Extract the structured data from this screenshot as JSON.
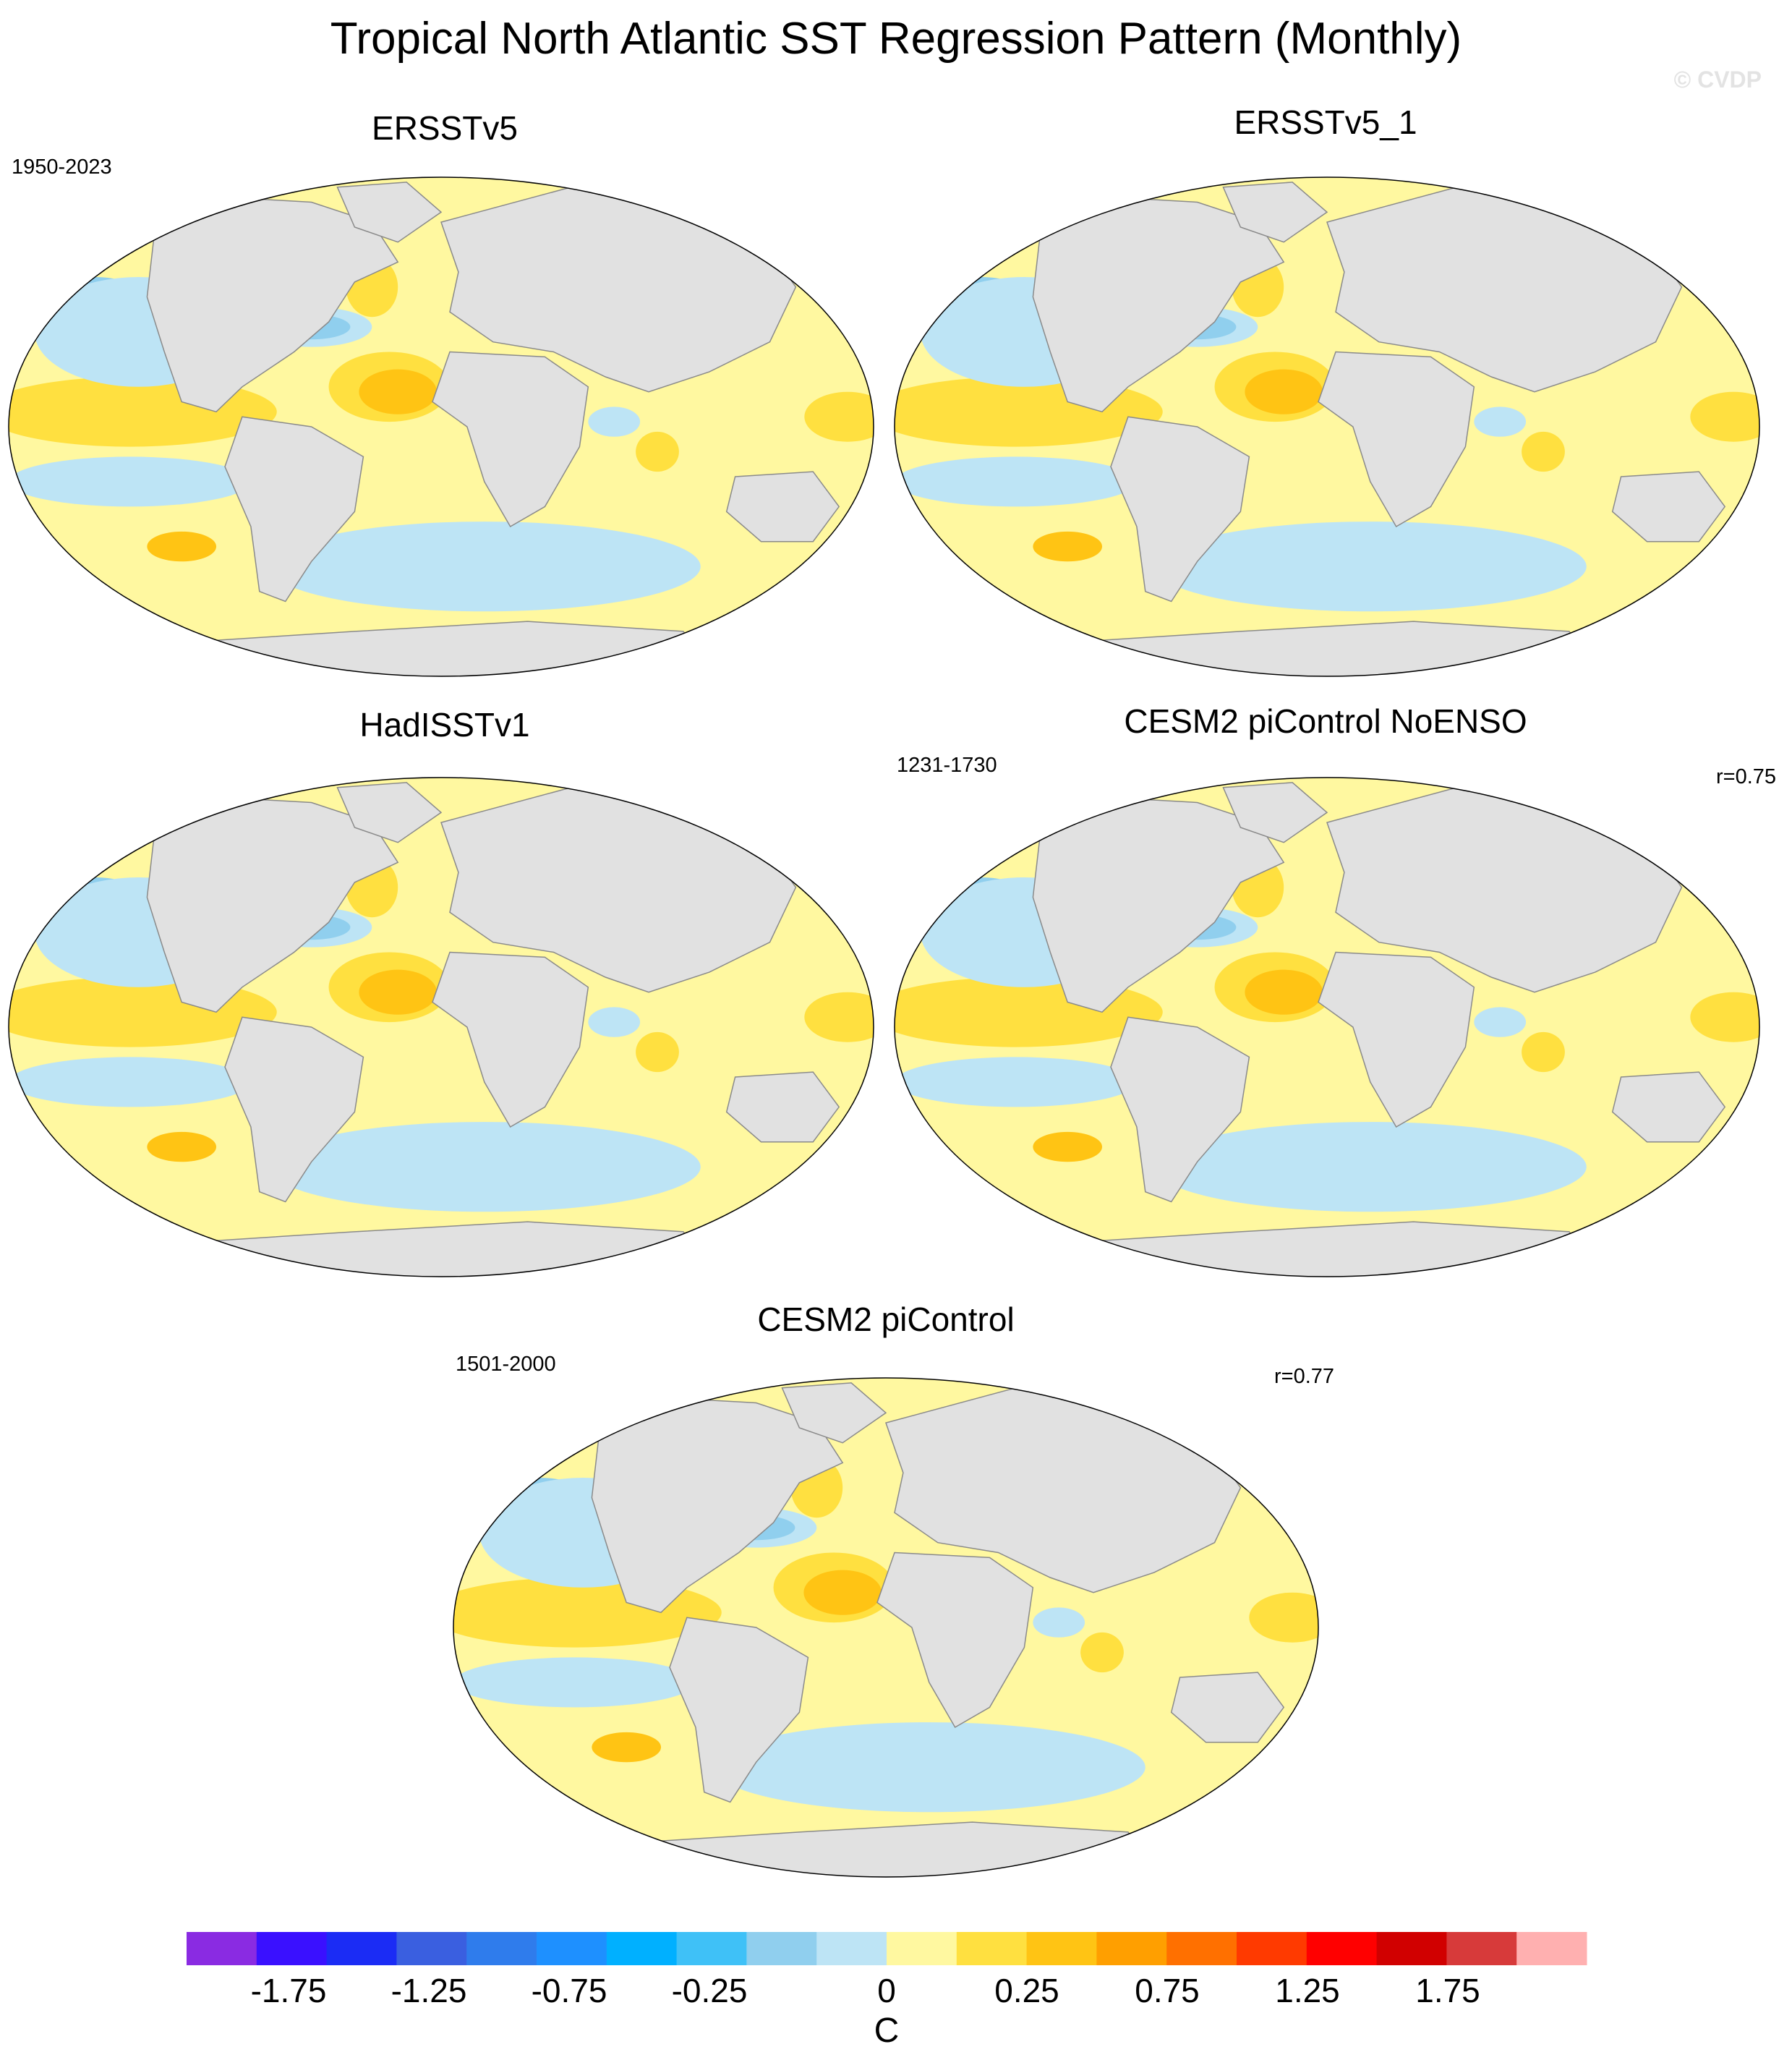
{
  "figure": {
    "title": "Tropical North Atlantic SST Regression Pattern (Monthly)",
    "watermark": "© CVDP"
  },
  "panels": [
    {
      "title": "ERSSTv5",
      "period": "1950-2023",
      "corr": ""
    },
    {
      "title": "ERSSTv5_1",
      "period": "",
      "corr": ""
    },
    {
      "title": "HadISSTv1",
      "period": "",
      "corr": ""
    },
    {
      "title": "CESM2 piControl NoENSO",
      "period": "1231-1730",
      "corr": "r=0.75"
    },
    {
      "title": "CESM2 piControl",
      "period": "1501-2000",
      "corr": "r=0.77"
    }
  ],
  "colorbar": {
    "unit": "C",
    "colors": [
      "#8a2be2",
      "#3a10ff",
      "#1b2cf5",
      "#3a5fe0",
      "#2f7cec",
      "#1e90ff",
      "#00b0ff",
      "#3fc1f7",
      "#90cfee",
      "#bde4f5",
      "#fff8a0",
      "#ffe040",
      "#ffc414",
      "#ff9f00",
      "#ff7000",
      "#ff3a00",
      "#ff0000",
      "#d10000",
      "#d73a3a",
      "#ffb0b0"
    ],
    "tick_labels": [
      "-1.75",
      "-1.25",
      "-0.75",
      "-0.25",
      "0",
      "0.25",
      "0.75",
      "1.25",
      "1.75"
    ]
  },
  "map_colors": {
    "land": "#e1e1e1",
    "weak_positive": "#fff8a0",
    "positive": "#ffe040",
    "strong_positive": "#ffc414",
    "weak_negative": "#bde4f5",
    "negative": "#90cfee",
    "strong_negative": "#3fc1f7"
  }
}
